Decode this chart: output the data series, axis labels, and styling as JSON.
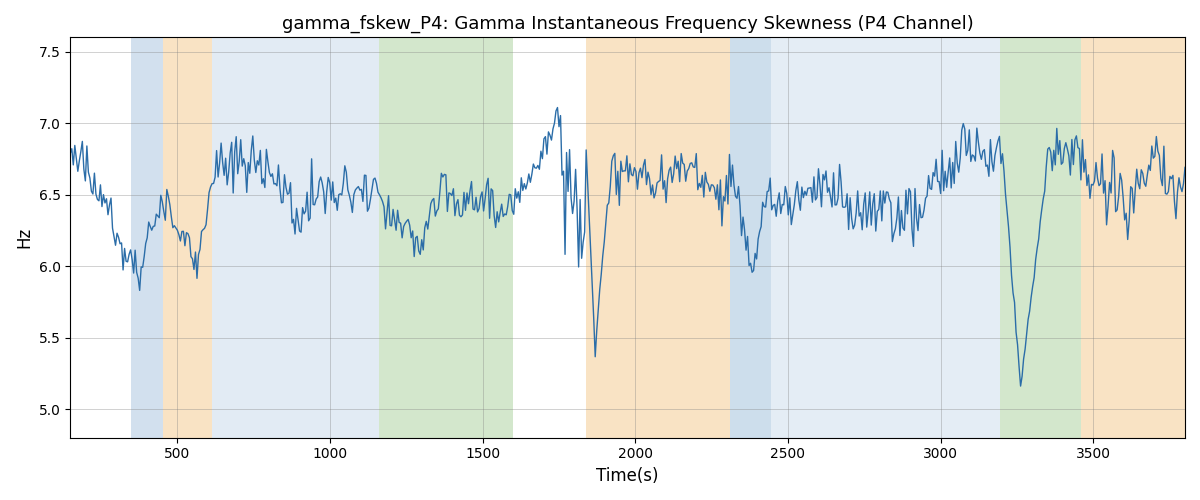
{
  "title": "gamma_fskew_P4: Gamma Instantaneous Frequency Skewness (P4 Channel)",
  "xlabel": "Time(s)",
  "ylabel": "Hz",
  "xlim": [
    150,
    3800
  ],
  "ylim": [
    4.8,
    7.6
  ],
  "line_color": "#2b6da8",
  "line_width": 1.0,
  "bg_color": "white",
  "bands": [
    {
      "xmin": 350,
      "xmax": 455,
      "color": "#adc8e0",
      "alpha": 0.55
    },
    {
      "xmin": 455,
      "xmax": 615,
      "color": "#f5c98a",
      "alpha": 0.5
    },
    {
      "xmin": 615,
      "xmax": 1160,
      "color": "#adc8e0",
      "alpha": 0.35
    },
    {
      "xmin": 1160,
      "xmax": 1600,
      "color": "#a8d09a",
      "alpha": 0.5
    },
    {
      "xmin": 1840,
      "xmax": 2310,
      "color": "#f5c98a",
      "alpha": 0.5
    },
    {
      "xmin": 2310,
      "xmax": 2445,
      "color": "#adc8e0",
      "alpha": 0.6
    },
    {
      "xmin": 2445,
      "xmax": 2960,
      "color": "#adc8e0",
      "alpha": 0.32
    },
    {
      "xmin": 2960,
      "xmax": 3195,
      "color": "#adc8e0",
      "alpha": 0.32
    },
    {
      "xmin": 3195,
      "xmax": 3460,
      "color": "#a8d09a",
      "alpha": 0.5
    },
    {
      "xmin": 3460,
      "xmax": 3800,
      "color": "#f5c98a",
      "alpha": 0.5
    }
  ],
  "yticks": [
    5.0,
    5.5,
    6.0,
    6.5,
    7.0,
    7.5
  ],
  "xticks": [
    500,
    1000,
    1500,
    2000,
    2500,
    3000,
    3500
  ]
}
